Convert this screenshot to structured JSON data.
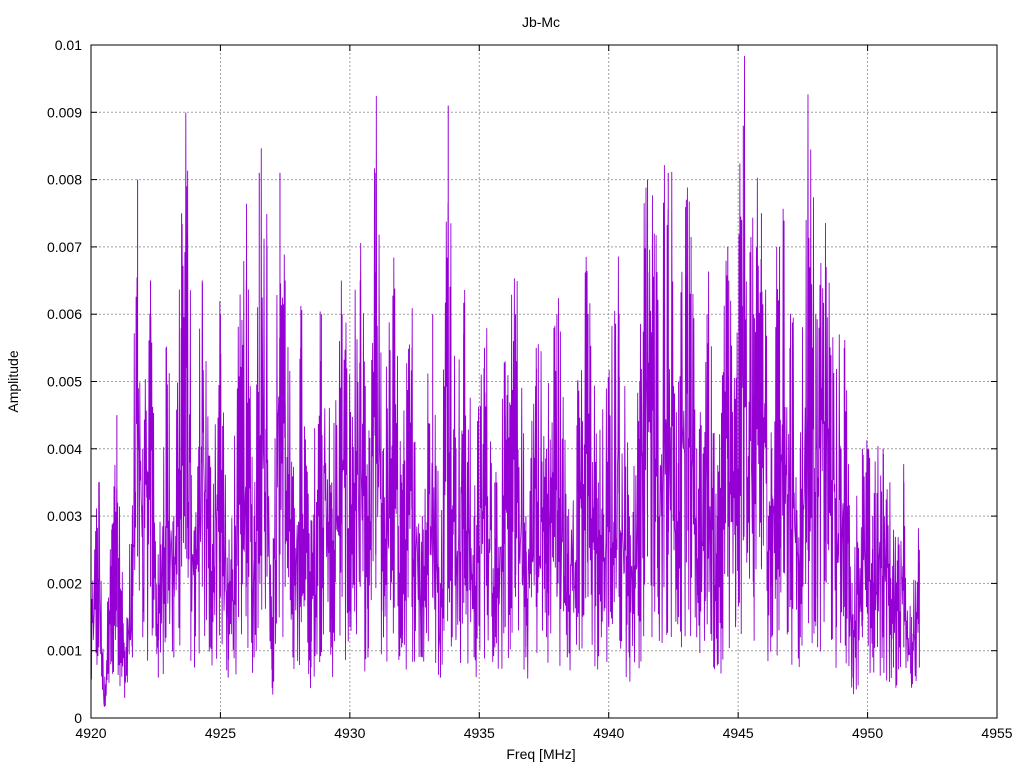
{
  "chart_data": {
    "type": "line",
    "title": "Jb-Mc",
    "xlabel": "Freq [MHz]",
    "ylabel": "Amplitude",
    "xlim": [
      4920,
      4955
    ],
    "ylim": [
      0,
      0.01
    ],
    "x_ticks": [
      "4920",
      "4925",
      "4930",
      "4935",
      "4940",
      "4945",
      "4950",
      "4955"
    ],
    "y_ticks": [
      "0",
      "0.001",
      "0.002",
      "0.003",
      "0.004",
      "0.005",
      "0.006",
      "0.007",
      "0.008",
      "0.009",
      "0.01"
    ],
    "grid": true,
    "series": [
      {
        "color": "#9400d3",
        "x_start": 4920,
        "x_end": 4952,
        "description_points": [
          [
            4920.0,
            0.0017
          ],
          [
            4920.3,
            0.0035
          ],
          [
            4920.5,
            0.0003
          ],
          [
            4920.8,
            0.0028
          ],
          [
            4921.0,
            0.0045
          ],
          [
            4921.3,
            0.001
          ],
          [
            4921.6,
            0.003
          ],
          [
            4921.8,
            0.008
          ],
          [
            4922.0,
            0.004
          ],
          [
            4922.3,
            0.0065
          ],
          [
            4922.6,
            0.002
          ],
          [
            4922.9,
            0.0055
          ],
          [
            4923.2,
            0.003
          ],
          [
            4923.5,
            0.0075
          ],
          [
            4923.7,
            0.0079
          ],
          [
            4924.0,
            0.0025
          ],
          [
            4924.3,
            0.0065
          ],
          [
            4924.6,
            0.0035
          ],
          [
            4925.0,
            0.006
          ],
          [
            4925.3,
            0.002
          ],
          [
            4925.7,
            0.005
          ],
          [
            4926.0,
            0.0065
          ],
          [
            4926.3,
            0.003
          ],
          [
            4926.5,
            0.0081
          ],
          [
            4926.8,
            0.007
          ],
          [
            4927.0,
            0.0015
          ],
          [
            4927.3,
            0.0081
          ],
          [
            4927.5,
            0.0065
          ],
          [
            4927.8,
            0.003
          ],
          [
            4928.1,
            0.0055
          ],
          [
            4928.5,
            0.0025
          ],
          [
            4928.9,
            0.006
          ],
          [
            4929.3,
            0.0035
          ],
          [
            4929.7,
            0.006
          ],
          [
            4930.0,
            0.0045
          ],
          [
            4930.4,
            0.0065
          ],
          [
            4930.7,
            0.003
          ],
          [
            4931.0,
            0.0081
          ],
          [
            4931.3,
            0.004
          ],
          [
            4931.7,
            0.006
          ],
          [
            4932.0,
            0.0035
          ],
          [
            4932.4,
            0.0055
          ],
          [
            4932.8,
            0.003
          ],
          [
            4933.2,
            0.006
          ],
          [
            4933.5,
            0.002
          ],
          [
            4933.8,
            0.0091
          ],
          [
            4934.1,
            0.004
          ],
          [
            4934.4,
            0.0057
          ],
          [
            4934.8,
            0.003
          ],
          [
            4935.2,
            0.0055
          ],
          [
            4935.6,
            0.0035
          ],
          [
            4936.0,
            0.0045
          ],
          [
            4936.4,
            0.006
          ],
          [
            4936.8,
            0.003
          ],
          [
            4937.2,
            0.0055
          ],
          [
            4937.6,
            0.004
          ],
          [
            4938.0,
            0.006
          ],
          [
            4938.4,
            0.003
          ],
          [
            4938.8,
            0.005
          ],
          [
            4939.2,
            0.006
          ],
          [
            4939.6,
            0.0035
          ],
          [
            4940.0,
            0.0045
          ],
          [
            4940.4,
            0.006
          ],
          [
            4940.8,
            0.003
          ],
          [
            4941.2,
            0.005
          ],
          [
            4941.5,
            0.008
          ],
          [
            4941.9,
            0.006
          ],
          [
            4942.3,
            0.0081
          ],
          [
            4942.7,
            0.005
          ],
          [
            4943.0,
            0.0077
          ],
          [
            4943.4,
            0.004
          ],
          [
            4943.8,
            0.006
          ],
          [
            4944.2,
            0.003
          ],
          [
            4944.6,
            0.007
          ],
          [
            4944.9,
            0.0045
          ],
          [
            4945.2,
            0.0088
          ],
          [
            4945.6,
            0.006
          ],
          [
            4945.9,
            0.0075
          ],
          [
            4946.3,
            0.004
          ],
          [
            4946.6,
            0.007
          ],
          [
            4947.0,
            0.0055
          ],
          [
            4947.4,
            0.004
          ],
          [
            4947.7,
            0.0083
          ],
          [
            4948.0,
            0.006
          ],
          [
            4948.4,
            0.0067
          ],
          [
            4948.8,
            0.0045
          ],
          [
            4949.1,
            0.0055
          ],
          [
            4949.4,
            0.002
          ],
          [
            4949.8,
            0.004
          ],
          [
            4950.2,
            0.003
          ],
          [
            4950.6,
            0.004
          ],
          [
            4951.0,
            0.0025
          ],
          [
            4951.4,
            0.0035
          ],
          [
            4951.7,
            0.0015
          ],
          [
            4952.0,
            0.0025
          ]
        ]
      }
    ]
  }
}
